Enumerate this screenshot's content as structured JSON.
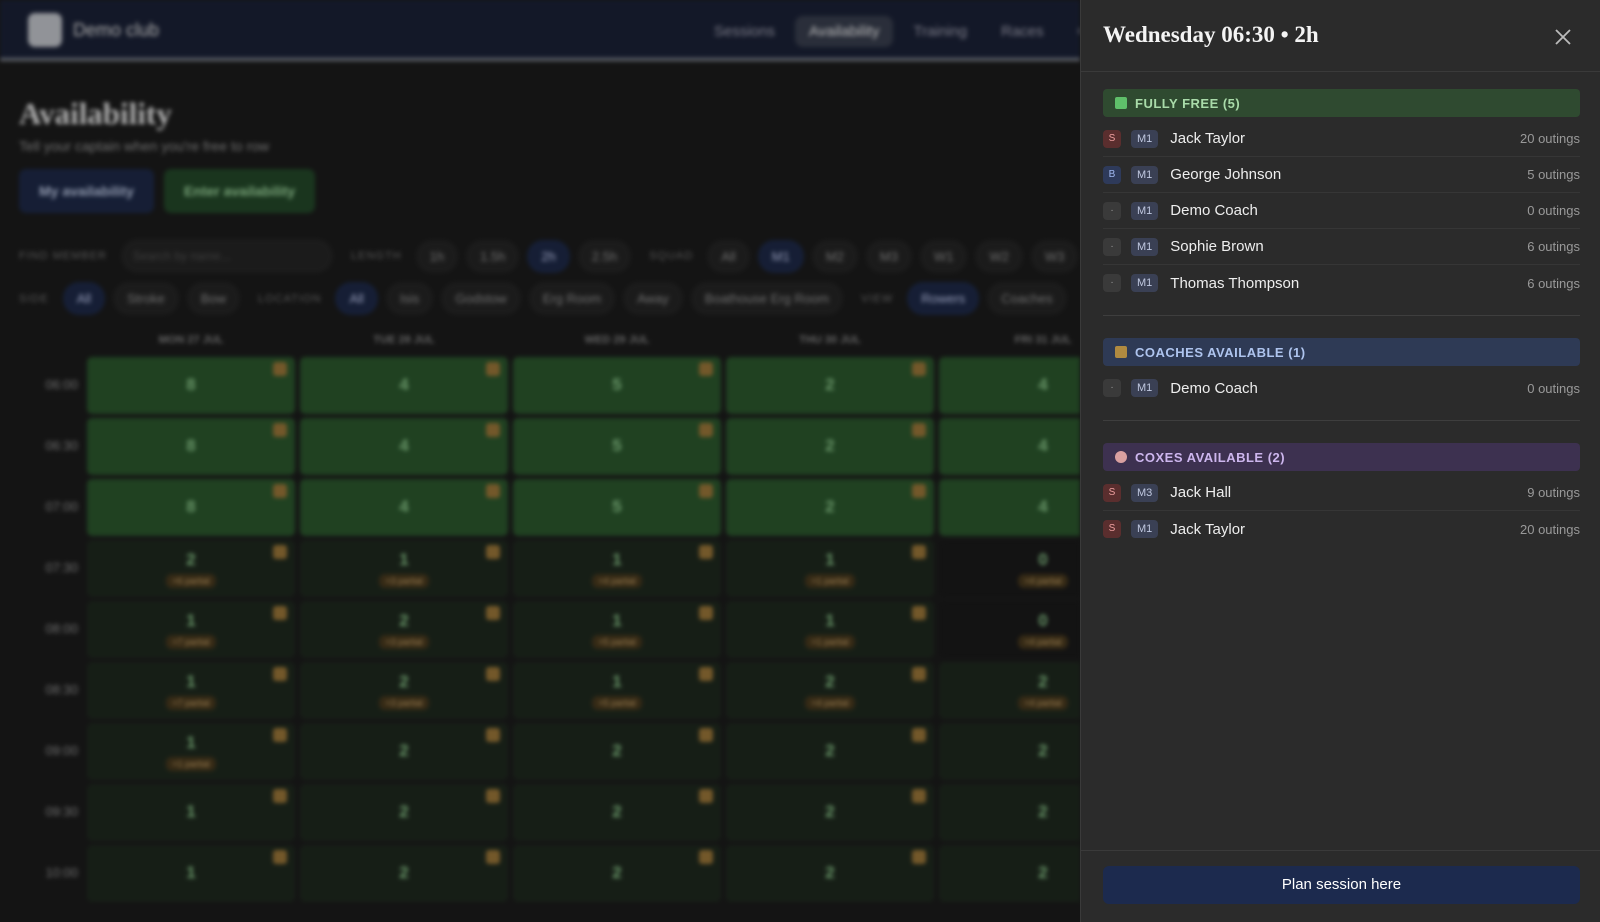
{
  "nav": {
    "brand": "Demo club",
    "links": [
      "Sessions",
      "Availability",
      "Training",
      "Races",
      "Ca"
    ]
  },
  "page": {
    "title": "Availability",
    "subtitle": "Tell your captain when you're free to row",
    "buttons": [
      "My availability",
      "Enter availability"
    ]
  },
  "filters": {
    "find": {
      "label": "FIND MEMBER",
      "placeholder": "Search by name..."
    },
    "length": {
      "label": "LENGTH",
      "options": [
        "1h",
        "1.5h",
        "2h",
        "2.5h"
      ]
    },
    "squad": {
      "label": "SQUAD",
      "options": [
        "All",
        "M1",
        "M2",
        "M3",
        "W1",
        "W2",
        "W3"
      ]
    },
    "side": {
      "label": "SIDE",
      "options": [
        "All",
        "Stroke",
        "Bow"
      ]
    },
    "location": {
      "label": "LOCATION",
      "options": [
        "All",
        "Isis",
        "Godstow",
        "Erg Room",
        "Away",
        "Boathouse Erg Room"
      ]
    },
    "view": {
      "label": "VIEW",
      "options": [
        "Rowers",
        "Coaches"
      ]
    }
  },
  "grid": {
    "days": [
      "MON 27 JUL",
      "TUE 28 JUL",
      "WED 29 JUL",
      "THU 30 JUL",
      "FRI 31 JUL"
    ],
    "times": [
      "06:00",
      "06:30",
      "07:00",
      "07:30",
      "08:00",
      "08:30",
      "09:00",
      "09:30",
      "10:00"
    ],
    "rows": [
      [
        {
          "count": "8"
        },
        {
          "count": "4"
        },
        {
          "count": "5"
        },
        {
          "count": "2"
        },
        {
          "count": "4"
        }
      ],
      [
        {
          "count": "8"
        },
        {
          "count": "4"
        },
        {
          "count": "5"
        },
        {
          "count": "2"
        },
        {
          "count": "4"
        }
      ],
      [
        {
          "count": "8"
        },
        {
          "count": "4"
        },
        {
          "count": "5"
        },
        {
          "count": "2"
        },
        {
          "count": "4"
        }
      ],
      [
        {
          "count": "2",
          "partial": "+6 partial"
        },
        {
          "count": "1",
          "partial": "+3 partial"
        },
        {
          "count": "1",
          "partial": "+4 partial"
        },
        {
          "count": "1",
          "partial": "+1 partial"
        },
        {
          "count": "0",
          "partial": "+4 partial"
        }
      ],
      [
        {
          "count": "1",
          "partial": "+7 partial"
        },
        {
          "count": "2",
          "partial": "+3 partial"
        },
        {
          "count": "1",
          "partial": "+5 partial"
        },
        {
          "count": "1",
          "partial": "+1 partial"
        },
        {
          "count": "0",
          "partial": "+4 partial"
        }
      ],
      [
        {
          "count": "1",
          "partial": "+7 partial"
        },
        {
          "count": "2",
          "partial": "+3 partial"
        },
        {
          "count": "1",
          "partial": "+5 partial"
        },
        {
          "count": "2",
          "partial": "+4 partial"
        },
        {
          "count": "2",
          "partial": "+4 partial"
        }
      ],
      [
        {
          "count": "1",
          "partial": "+1 partial"
        },
        {
          "count": "2"
        },
        {
          "count": "2"
        },
        {
          "count": "2"
        },
        {
          "count": "2"
        }
      ],
      [
        {
          "count": "1"
        },
        {
          "count": "2"
        },
        {
          "count": "2"
        },
        {
          "count": "2"
        },
        {
          "count": "2"
        }
      ],
      [
        {
          "count": "1"
        },
        {
          "count": "2"
        },
        {
          "count": "2"
        },
        {
          "count": "2"
        },
        {
          "count": "2"
        }
      ]
    ]
  },
  "panel": {
    "title": "Wednesday 06:30 • 2h",
    "sections": [
      {
        "title": "FULLY FREE (5)",
        "members": [
          {
            "side": "S",
            "squad": "M1",
            "name": "Jack Taylor",
            "outings": "20 outings"
          },
          {
            "side": "B",
            "squad": "M1",
            "name": "George Johnson",
            "outings": "5 outings"
          },
          {
            "side": "·",
            "squad": "M1",
            "name": "Demo Coach",
            "outings": "0 outings"
          },
          {
            "side": "·",
            "squad": "M1",
            "name": "Sophie Brown",
            "outings": "6 outings"
          },
          {
            "side": "·",
            "squad": "M1",
            "name": "Thomas Thompson",
            "outings": "6 outings"
          }
        ]
      },
      {
        "title": "COACHES AVAILABLE (1)",
        "members": [
          {
            "side": "·",
            "squad": "M1",
            "name": "Demo Coach",
            "outings": "0 outings"
          }
        ]
      },
      {
        "title": "COXES AVAILABLE (2)",
        "members": [
          {
            "side": "S",
            "squad": "M3",
            "name": "Jack Hall",
            "outings": "9 outings"
          },
          {
            "side": "S",
            "squad": "M1",
            "name": "Jack Taylor",
            "outings": "20 outings"
          }
        ]
      }
    ],
    "button": "Plan session here"
  }
}
